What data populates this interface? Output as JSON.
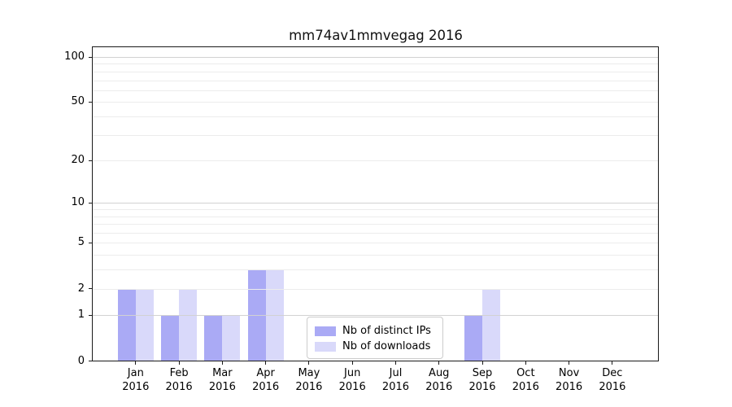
{
  "chart": {
    "title": "mm74av1mmvegag 2016"
  },
  "chart_data": {
    "type": "bar",
    "title": "mm74av1mmvegag 2016",
    "categories": [
      "Jan",
      "Feb",
      "Mar",
      "Apr",
      "May",
      "Jun",
      "Jul",
      "Aug",
      "Sep",
      "Oct",
      "Nov",
      "Dec"
    ],
    "x_tick_second_line": "2016",
    "series": [
      {
        "name": "Nb of distinct IPs",
        "color": "#aaaaf5",
        "values": [
          2,
          1,
          1,
          3,
          0,
          0,
          0,
          0,
          1,
          0,
          0,
          0
        ]
      },
      {
        "name": "Nb of downloads",
        "color": "#d9d9fa",
        "values": [
          2,
          2,
          1,
          3,
          0,
          0,
          0,
          0,
          2,
          0,
          0,
          0
        ]
      }
    ],
    "yscale": "log1p",
    "ylim": [
      0,
      118
    ],
    "y_tick_values": [
      0,
      1,
      2,
      5,
      10,
      20,
      50,
      100
    ],
    "y_tick_labels": [
      "0",
      "1",
      "2",
      "5",
      "10",
      "20",
      "50",
      "100"
    ],
    "grid": {
      "major_values": [
        1,
        10,
        100
      ],
      "minor_values": [
        2,
        3,
        4,
        5,
        6,
        7,
        8,
        9,
        20,
        30,
        40,
        50,
        60,
        70,
        80,
        90
      ],
      "major_color": "#d2d2d2",
      "minor_color": "#ececec"
    },
    "legend_position": "inside lower-center",
    "xlabel": "",
    "ylabel": ""
  }
}
